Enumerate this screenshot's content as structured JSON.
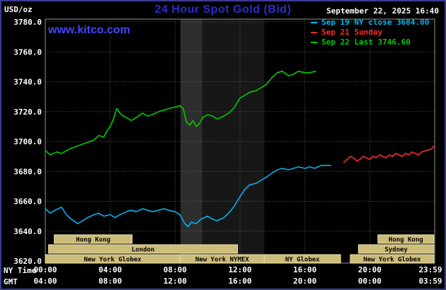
{
  "header": {
    "unit_label": "USD/oz",
    "title": "24 Hour Spot Gold (Bid)",
    "datetime": "September 22, 2025 16:40",
    "watermark": "www.kitco.com"
  },
  "legend": {
    "items": [
      {
        "text": "Sep 19 NY close 3684.00",
        "color": "#00b4f0"
      },
      {
        "text": "Sep 21 Sunday",
        "color": "#ff2a2a"
      },
      {
        "text": "Sep 22 Last 3746.60",
        "color": "#00cc00"
      }
    ]
  },
  "axes": {
    "x_ny_label": "NY Time",
    "x_gmt_label": "GMT",
    "y_ticks": [
      {
        "label": "3780.0",
        "value": 3780
      },
      {
        "label": "3760.0",
        "value": 3760
      },
      {
        "label": "3740.0",
        "value": 3740
      },
      {
        "label": "3720.0",
        "value": 3720
      },
      {
        "label": "3700.0",
        "value": 3700
      },
      {
        "label": "3680.0",
        "value": 3680
      },
      {
        "label": "3660.0",
        "value": 3660
      },
      {
        "label": "3640.0",
        "value": 3640
      },
      {
        "label": "3620.0",
        "value": 3620
      }
    ],
    "x_ticks": [
      {
        "value": 0,
        "ny": "00:00",
        "gmt": "04:00"
      },
      {
        "value": 4,
        "ny": "04:00",
        "gmt": "08:00"
      },
      {
        "value": 8,
        "ny": "08:00",
        "gmt": "12:00"
      },
      {
        "value": 12,
        "ny": "12:00",
        "gmt": "16:00"
      },
      {
        "value": 16,
        "ny": "16:00",
        "gmt": "20:00"
      },
      {
        "value": 20,
        "ny": "20:00",
        "gmt": "00:00"
      },
      {
        "value": 23.983,
        "ny": "23:59",
        "gmt": "03:59"
      }
    ]
  },
  "chart_data": {
    "type": "line",
    "title": "24 Hour Spot Gold (Bid)",
    "xlabel": "NY Time (hours)",
    "ylabel": "USD/oz",
    "xlim": [
      0,
      24
    ],
    "ylim": [
      3620,
      3780
    ],
    "y_tick_step": 20,
    "grid": true,
    "legend_position": "top-right",
    "series": [
      {
        "name": "Sep 19 NY close",
        "color": "#00b4f0",
        "close_value": 3684.0,
        "points": [
          [
            0,
            3655
          ],
          [
            0.3,
            3652
          ],
          [
            0.6,
            3654
          ],
          [
            1,
            3656
          ],
          [
            1.3,
            3651
          ],
          [
            1.6,
            3648
          ],
          [
            2,
            3645
          ],
          [
            2.3,
            3647
          ],
          [
            2.6,
            3649
          ],
          [
            3,
            3651
          ],
          [
            3.3,
            3652
          ],
          [
            3.6,
            3650
          ],
          [
            4,
            3651
          ],
          [
            4.3,
            3649
          ],
          [
            4.6,
            3651
          ],
          [
            5,
            3653
          ],
          [
            5.3,
            3654
          ],
          [
            5.6,
            3653
          ],
          [
            6,
            3655
          ],
          [
            6.3,
            3654
          ],
          [
            6.6,
            3653
          ],
          [
            7,
            3654
          ],
          [
            7.3,
            3655
          ],
          [
            7.6,
            3654
          ],
          [
            8,
            3653
          ],
          [
            8.3,
            3651
          ],
          [
            8.6,
            3645
          ],
          [
            8.8,
            3643
          ],
          [
            9,
            3646
          ],
          [
            9.3,
            3645
          ],
          [
            9.6,
            3648
          ],
          [
            10,
            3650
          ],
          [
            10.3,
            3648
          ],
          [
            10.6,
            3647
          ],
          [
            11,
            3649
          ],
          [
            11.3,
            3652
          ],
          [
            11.6,
            3656
          ],
          [
            12,
            3663
          ],
          [
            12.3,
            3668
          ],
          [
            12.6,
            3671
          ],
          [
            13,
            3672
          ],
          [
            13.3,
            3674
          ],
          [
            13.6,
            3676
          ],
          [
            14,
            3679
          ],
          [
            14.3,
            3681
          ],
          [
            14.6,
            3682
          ],
          [
            15,
            3681
          ],
          [
            15.3,
            3682
          ],
          [
            15.6,
            3683
          ],
          [
            16,
            3682
          ],
          [
            16.3,
            3683
          ],
          [
            16.6,
            3682
          ],
          [
            17,
            3684
          ],
          [
            17.6,
            3684
          ]
        ]
      },
      {
        "name": "Sep 21 Sunday",
        "color": "#ff2a2a",
        "points": [
          [
            18.4,
            3686
          ],
          [
            18.6,
            3688
          ],
          [
            18.8,
            3690
          ],
          [
            19,
            3689
          ],
          [
            19.2,
            3687
          ],
          [
            19.4,
            3688
          ],
          [
            19.6,
            3690
          ],
          [
            19.8,
            3689
          ],
          [
            20,
            3688
          ],
          [
            20.2,
            3690
          ],
          [
            20.4,
            3689
          ],
          [
            20.6,
            3691
          ],
          [
            20.8,
            3690
          ],
          [
            21,
            3689
          ],
          [
            21.2,
            3691
          ],
          [
            21.4,
            3690
          ],
          [
            21.6,
            3692
          ],
          [
            21.8,
            3691
          ],
          [
            22,
            3690
          ],
          [
            22.2,
            3692
          ],
          [
            22.4,
            3691
          ],
          [
            22.6,
            3693
          ],
          [
            22.8,
            3692
          ],
          [
            23,
            3691
          ],
          [
            23.2,
            3693
          ],
          [
            23.5,
            3694
          ],
          [
            23.8,
            3695
          ],
          [
            23.983,
            3697
          ]
        ]
      },
      {
        "name": "Sep 22 Last",
        "color": "#00cc00",
        "last_value": 3746.6,
        "points": [
          [
            0,
            3694
          ],
          [
            0.3,
            3691
          ],
          [
            0.7,
            3693
          ],
          [
            1,
            3692
          ],
          [
            1.5,
            3695
          ],
          [
            2,
            3697
          ],
          [
            2.5,
            3699
          ],
          [
            3,
            3701
          ],
          [
            3.3,
            3704
          ],
          [
            3.6,
            3703
          ],
          [
            3.8,
            3707
          ],
          [
            4,
            3710
          ],
          [
            4.2,
            3715
          ],
          [
            4.4,
            3722
          ],
          [
            4.6,
            3719
          ],
          [
            4.8,
            3717
          ],
          [
            5,
            3716
          ],
          [
            5.3,
            3714
          ],
          [
            5.6,
            3716
          ],
          [
            6,
            3719
          ],
          [
            6.3,
            3717
          ],
          [
            6.6,
            3718
          ],
          [
            7,
            3720
          ],
          [
            7.3,
            3721
          ],
          [
            7.6,
            3722
          ],
          [
            8,
            3723
          ],
          [
            8.3,
            3724
          ],
          [
            8.5,
            3722
          ],
          [
            8.7,
            3713
          ],
          [
            8.9,
            3711
          ],
          [
            9.1,
            3714
          ],
          [
            9.3,
            3710
          ],
          [
            9.5,
            3712
          ],
          [
            9.7,
            3716
          ],
          [
            10,
            3718
          ],
          [
            10.3,
            3717
          ],
          [
            10.6,
            3715
          ],
          [
            11,
            3717
          ],
          [
            11.3,
            3719
          ],
          [
            11.6,
            3722
          ],
          [
            12,
            3729
          ],
          [
            12.3,
            3731
          ],
          [
            12.6,
            3733
          ],
          [
            13,
            3734
          ],
          [
            13.3,
            3736
          ],
          [
            13.6,
            3738
          ],
          [
            14,
            3743
          ],
          [
            14.3,
            3746
          ],
          [
            14.6,
            3747
          ],
          [
            15,
            3744
          ],
          [
            15.3,
            3745
          ],
          [
            15.6,
            3747
          ],
          [
            16,
            3746
          ],
          [
            16.3,
            3746
          ],
          [
            16.67,
            3747
          ]
        ]
      }
    ],
    "shaded_bands": [
      {
        "x0": 8.33,
        "x1": 9.67,
        "color": "#2e2e2e"
      },
      {
        "x0": 9.67,
        "x1": 13.5,
        "color": "#171717"
      }
    ],
    "sessions": [
      {
        "label": "Hong Kong",
        "row": 0,
        "x0": 0.55,
        "x1": 5.35
      },
      {
        "label": "Hong Kong",
        "row": 0,
        "x0": 20.5,
        "x1": 23.95
      },
      {
        "label": "London",
        "row": 1,
        "x0": 0.2,
        "x1": 11.85
      },
      {
        "label": "Sydney",
        "row": 1,
        "x0": 19.3,
        "x1": 23.95
      },
      {
        "label": "New York Globex",
        "row": 2,
        "x0": 0,
        "x1": 8.3
      },
      {
        "label": "New York NYMEX",
        "row": 2,
        "x0": 8.3,
        "x1": 13.5
      },
      {
        "label": "NY Globex",
        "row": 2,
        "x0": 13.5,
        "x1": 18.2
      },
      {
        "label": "New York Globex",
        "row": 2,
        "x0": 18.8,
        "x1": 23.95
      }
    ],
    "session_box_color": "#cdbd7a"
  }
}
